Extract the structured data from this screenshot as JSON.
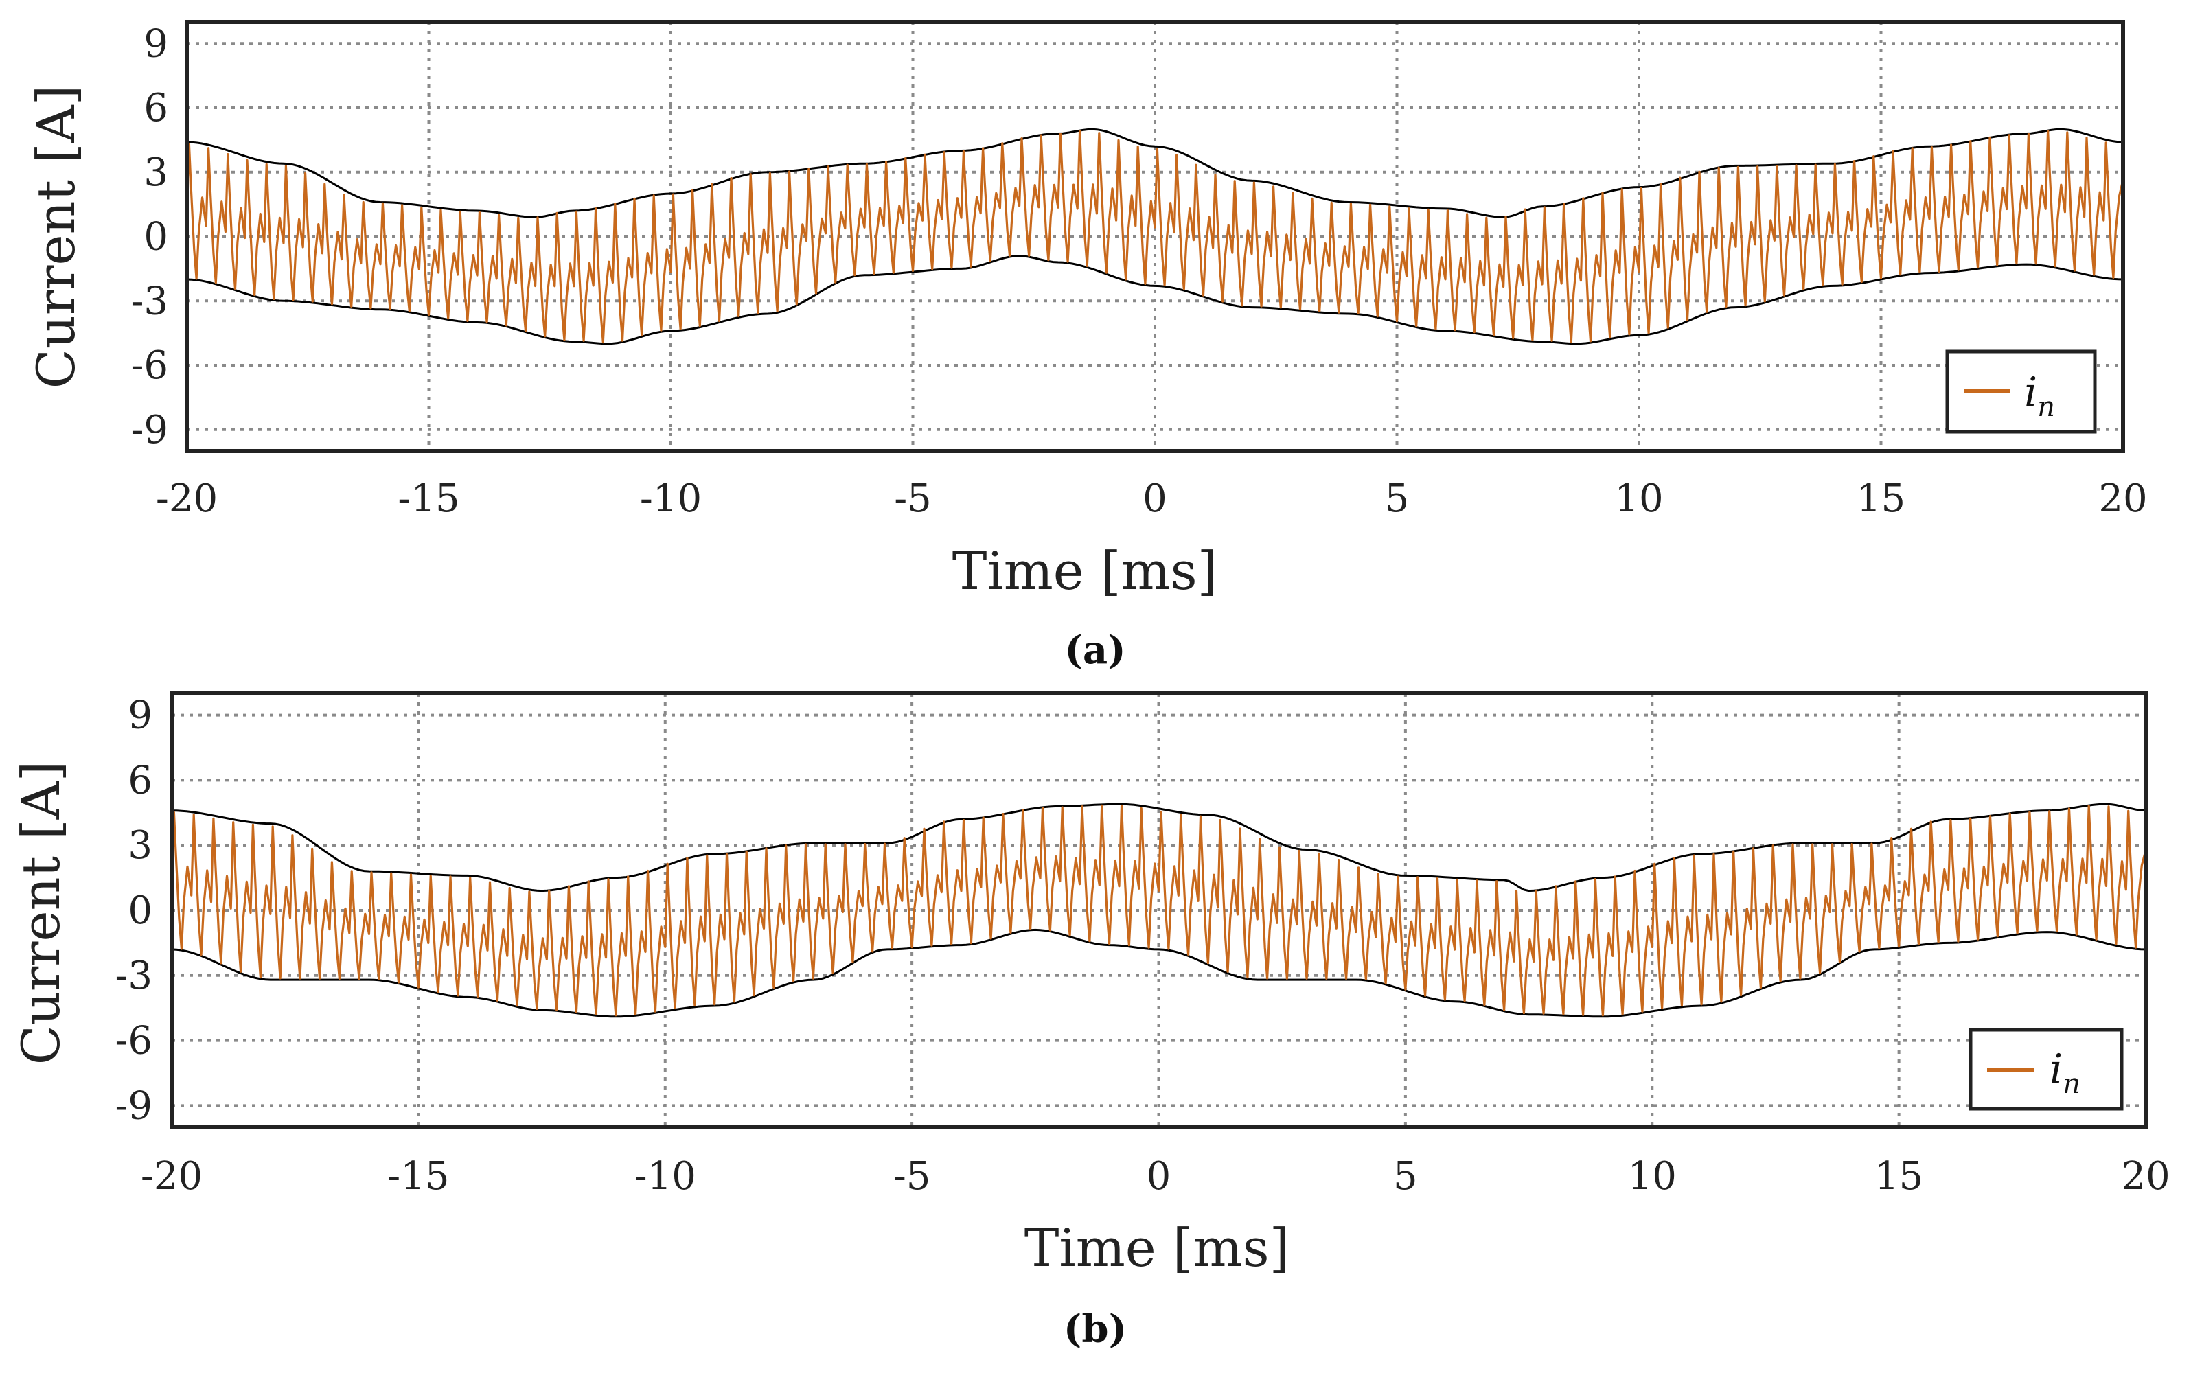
{
  "chart_data": [
    {
      "type": "line",
      "panel": "(a)",
      "xlabel": "Time [ms]",
      "ylabel": "Current [A]",
      "xlim": [
        -20,
        20
      ],
      "ylim": [
        -10,
        10
      ],
      "xticks": [
        -20,
        -15,
        -10,
        -5,
        0,
        5,
        10,
        15,
        20
      ],
      "xtick_labels": [
        "-20",
        "-15",
        "-10",
        "-5",
        "0",
        "5",
        "10",
        "15",
        "20"
      ],
      "yticks": [
        9,
        6,
        3,
        0,
        -3,
        -6,
        -9
      ],
      "ytick_labels": [
        "9",
        "6",
        "3",
        "0",
        "-3",
        "-6",
        "-9"
      ],
      "grid": true,
      "legend": {
        "position": "bottom-right",
        "label": "i",
        "subscript": "n"
      },
      "colors": {
        "signal": "#c8691c",
        "envelope": "#000000"
      },
      "series": [
        {
          "name": "i_n",
          "description": "switching ripple current, ~2.5 kHz, between envelopes",
          "switching_frequency_khz": 2.5,
          "upper_envelope": {
            "x": [
              -20,
              -18,
              -16,
              -14,
              -12.8,
              -12,
              -10,
              -8,
              -6,
              -4,
              -2,
              -1.3,
              0,
              2,
              4,
              6,
              7.2,
              8,
              10,
              12,
              14,
              16,
              18,
              18.7,
              20
            ],
            "y": [
              4.4,
              3.4,
              1.6,
              1.2,
              0.9,
              1.2,
              2.0,
              3.0,
              3.4,
              4.0,
              4.8,
              5.0,
              4.2,
              2.6,
              1.6,
              1.3,
              0.9,
              1.4,
              2.3,
              3.3,
              3.4,
              4.2,
              4.8,
              5.0,
              4.4
            ]
          },
          "lower_envelope": {
            "x": [
              -20,
              -18,
              -16,
              -14,
              -12,
              -11.3,
              -10,
              -8,
              -6,
              -4,
              -2.8,
              -2,
              0,
              2,
              4,
              6,
              8,
              8.7,
              10,
              12,
              14,
              16,
              18,
              20
            ],
            "y": [
              -2.0,
              -3.0,
              -3.4,
              -4.0,
              -4.9,
              -5.0,
              -4.4,
              -3.6,
              -1.8,
              -1.5,
              -0.9,
              -1.2,
              -2.3,
              -3.3,
              -3.6,
              -4.4,
              -4.9,
              -5.0,
              -4.6,
              -3.3,
              -2.3,
              -1.7,
              -1.3,
              -2.0
            ]
          }
        }
      ]
    },
    {
      "type": "line",
      "panel": "(b)",
      "xlabel": "Time [ms]",
      "ylabel": "Current [A]",
      "xlim": [
        -20,
        20
      ],
      "ylim": [
        -10,
        10
      ],
      "xticks": [
        -20,
        -15,
        -10,
        -5,
        0,
        5,
        10,
        15,
        20
      ],
      "xtick_labels": [
        "-20",
        "-15",
        "-10",
        "-5",
        "0",
        "5",
        "10",
        "15",
        "20"
      ],
      "yticks": [
        9,
        6,
        3,
        0,
        -3,
        -6,
        -9
      ],
      "ytick_labels": [
        "9",
        "6",
        "3",
        "0",
        "-3",
        "-6",
        "-9"
      ],
      "grid": true,
      "legend": {
        "position": "bottom-right",
        "label": "i",
        "subscript": "n"
      },
      "colors": {
        "signal": "#c8691c",
        "envelope": "#000000"
      },
      "series": [
        {
          "name": "i_n",
          "description": "switching ripple current, ~2.5 kHz, between envelopes",
          "switching_frequency_khz": 2.5,
          "upper_envelope": {
            "x": [
              -20,
              -18,
              -16,
              -14,
              -12.5,
              -11,
              -9,
              -7,
              -5.5,
              -4,
              -2,
              -0.8,
              1,
              3,
              5,
              7,
              7.5,
              9,
              11,
              13,
              14.5,
              16,
              18,
              19.2,
              20
            ],
            "y": [
              4.6,
              4.0,
              1.8,
              1.6,
              0.9,
              1.5,
              2.6,
              3.1,
              3.1,
              4.2,
              4.8,
              4.9,
              4.4,
              2.8,
              1.6,
              1.4,
              0.9,
              1.5,
              2.6,
              3.1,
              3.1,
              4.2,
              4.6,
              4.9,
              4.6
            ]
          },
          "lower_envelope": {
            "x": [
              -20,
              -18,
              -16,
              -14,
              -12.5,
              -11,
              -9,
              -7,
              -5.5,
              -4,
              -2.5,
              -1,
              0,
              2,
              4,
              6,
              7.5,
              9,
              11,
              13,
              14.5,
              16,
              18,
              20
            ],
            "y": [
              -1.8,
              -3.2,
              -3.2,
              -4.0,
              -4.6,
              -4.9,
              -4.4,
              -3.2,
              -1.8,
              -1.6,
              -0.9,
              -1.6,
              -1.8,
              -3.2,
              -3.2,
              -4.2,
              -4.8,
              -4.9,
              -4.4,
              -3.2,
              -1.8,
              -1.5,
              -1.0,
              -1.8
            ]
          }
        }
      ]
    }
  ]
}
